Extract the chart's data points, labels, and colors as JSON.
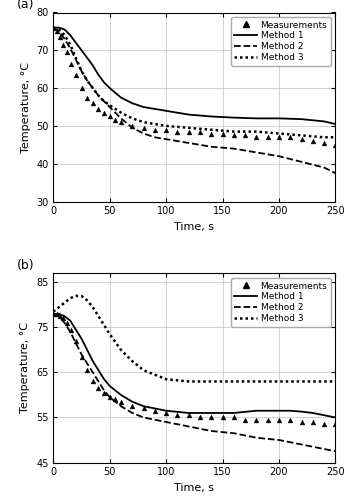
{
  "panel_a": {
    "label": "(a)",
    "ylim": [
      30,
      80
    ],
    "yticks": [
      30,
      40,
      50,
      60,
      70,
      80
    ],
    "xlim": [
      0,
      250
    ],
    "xticks": [
      0,
      50,
      100,
      150,
      200,
      250
    ],
    "ylabel": "Temperature, °C",
    "xlabel": "Time, s",
    "measurements_x": [
      0,
      3,
      6,
      9,
      12,
      16,
      20,
      25,
      30,
      35,
      40,
      45,
      50,
      55,
      60,
      70,
      80,
      90,
      100,
      110,
      120,
      130,
      140,
      150,
      160,
      170,
      180,
      190,
      200,
      210,
      220,
      230,
      240,
      250
    ],
    "measurements_y": [
      76.0,
      75.0,
      73.5,
      71.5,
      69.5,
      66.5,
      63.5,
      60.0,
      57.5,
      56.0,
      54.5,
      53.5,
      52.5,
      51.5,
      51.0,
      50.0,
      49.5,
      49.0,
      49.0,
      48.5,
      48.5,
      48.5,
      48.0,
      48.0,
      47.5,
      47.5,
      47.0,
      47.0,
      47.0,
      47.0,
      46.5,
      46.0,
      45.5,
      45.0
    ],
    "method1_x": [
      0,
      5,
      10,
      15,
      20,
      25,
      30,
      35,
      40,
      45,
      50,
      60,
      70,
      80,
      90,
      100,
      120,
      140,
      160,
      180,
      200,
      220,
      240,
      250
    ],
    "method1_y": [
      76.0,
      76.0,
      75.5,
      74.0,
      72.0,
      70.0,
      68.0,
      66.0,
      63.5,
      61.5,
      60.0,
      57.5,
      56.0,
      55.0,
      54.5,
      54.0,
      53.0,
      52.5,
      52.2,
      52.0,
      52.0,
      51.8,
      51.2,
      50.5
    ],
    "method2_x": [
      0,
      5,
      10,
      15,
      20,
      25,
      30,
      35,
      40,
      45,
      50,
      60,
      70,
      80,
      90,
      100,
      120,
      140,
      160,
      180,
      200,
      220,
      240,
      250
    ],
    "method2_y": [
      76.0,
      75.0,
      73.0,
      70.5,
      67.5,
      64.5,
      62.0,
      60.0,
      58.0,
      56.5,
      55.0,
      52.0,
      49.5,
      48.0,
      47.0,
      46.5,
      45.5,
      44.5,
      44.0,
      43.0,
      42.0,
      40.5,
      39.0,
      37.5
    ],
    "method3_x": [
      0,
      5,
      10,
      15,
      20,
      25,
      30,
      35,
      40,
      45,
      50,
      60,
      70,
      80,
      100,
      120,
      140,
      160,
      180,
      200,
      220,
      240,
      250
    ],
    "method3_y": [
      76.0,
      75.5,
      74.0,
      71.5,
      68.0,
      64.5,
      62.0,
      60.0,
      58.0,
      56.5,
      55.5,
      53.5,
      52.0,
      51.0,
      50.0,
      49.5,
      49.0,
      48.5,
      48.5,
      48.0,
      47.5,
      47.0,
      47.0
    ]
  },
  "panel_b": {
    "label": "(b)",
    "ylim": [
      45,
      87
    ],
    "yticks": [
      45,
      55,
      65,
      75,
      85
    ],
    "xlim": [
      0,
      250
    ],
    "xticks": [
      0,
      50,
      100,
      150,
      200,
      250
    ],
    "ylabel": "Temperature, °C",
    "xlabel": "Time, s",
    "measurements_x": [
      0,
      3,
      6,
      9,
      12,
      16,
      20,
      25,
      30,
      35,
      40,
      45,
      50,
      55,
      60,
      70,
      80,
      90,
      100,
      110,
      120,
      130,
      140,
      150,
      160,
      170,
      180,
      190,
      200,
      210,
      220,
      230,
      240,
      250
    ],
    "measurements_y": [
      78.0,
      78.0,
      77.5,
      77.0,
      76.0,
      74.5,
      72.0,
      68.5,
      65.5,
      63.0,
      61.5,
      60.5,
      59.5,
      59.0,
      58.5,
      57.5,
      57.0,
      56.5,
      56.0,
      55.5,
      55.5,
      55.0,
      55.0,
      55.0,
      55.0,
      54.5,
      54.5,
      54.5,
      54.5,
      54.5,
      54.0,
      54.0,
      53.5,
      53.5
    ],
    "method1_x": [
      0,
      5,
      10,
      15,
      20,
      25,
      30,
      35,
      40,
      45,
      50,
      60,
      70,
      80,
      90,
      100,
      120,
      140,
      160,
      180,
      190,
      200,
      210,
      220,
      230,
      240,
      250
    ],
    "method1_y": [
      78.0,
      78.0,
      77.5,
      76.5,
      74.5,
      72.5,
      70.0,
      67.5,
      65.5,
      63.5,
      62.0,
      60.0,
      58.5,
      57.5,
      57.0,
      56.5,
      56.0,
      56.0,
      56.0,
      56.5,
      56.5,
      56.5,
      56.5,
      56.3,
      56.0,
      55.5,
      55.0
    ],
    "method2_x": [
      0,
      5,
      10,
      15,
      20,
      25,
      30,
      35,
      40,
      45,
      50,
      60,
      70,
      80,
      90,
      100,
      120,
      140,
      160,
      180,
      200,
      220,
      240,
      250
    ],
    "method2_y": [
      78.0,
      77.5,
      76.0,
      74.0,
      71.5,
      69.0,
      67.0,
      65.0,
      63.0,
      61.0,
      59.5,
      57.5,
      56.0,
      55.0,
      54.5,
      54.0,
      53.0,
      52.0,
      51.5,
      50.5,
      50.0,
      49.0,
      48.0,
      47.5
    ],
    "method3_x": [
      0,
      5,
      10,
      15,
      20,
      25,
      30,
      35,
      40,
      45,
      50,
      60,
      70,
      80,
      90,
      100,
      120,
      140,
      160,
      180,
      200,
      220,
      240,
      250
    ],
    "method3_y": [
      78.5,
      79.5,
      80.5,
      81.5,
      82.0,
      82.0,
      81.0,
      79.5,
      77.5,
      75.5,
      73.5,
      70.0,
      67.5,
      65.5,
      64.5,
      63.5,
      63.0,
      63.0,
      63.0,
      63.0,
      63.0,
      63.0,
      63.0,
      63.0
    ]
  },
  "line_color": "#000000",
  "legend_fontsize": 6.5,
  "axis_fontsize": 8,
  "tick_fontsize": 7,
  "label_fontsize": 9
}
